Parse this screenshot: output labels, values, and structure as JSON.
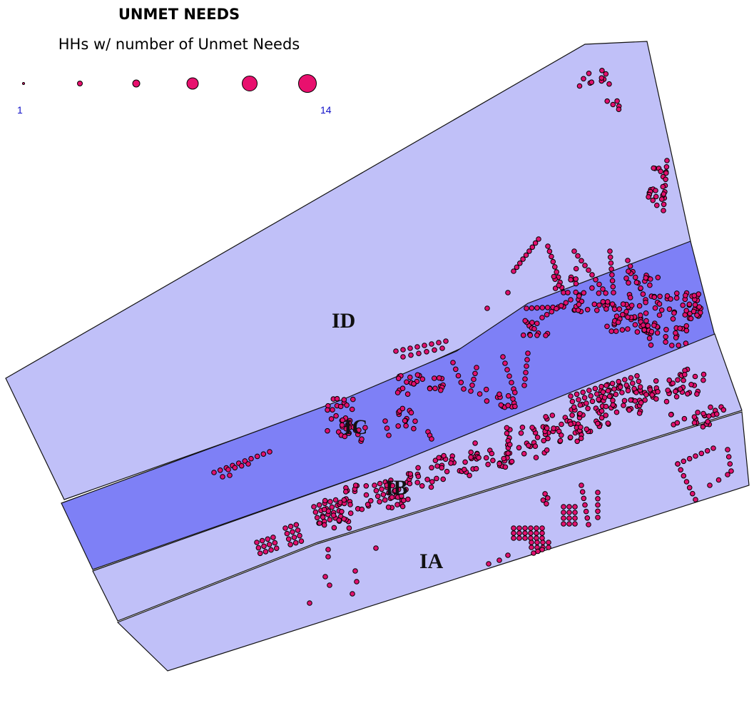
{
  "legend": {
    "title": "UNMET NEEDS",
    "subtitle": "HHs w/ number of Unmet Needs",
    "min_label": "1",
    "max_label": "14",
    "symbol_sizes": 6
  },
  "map": {
    "zones": [
      {
        "id": "ID",
        "label": "ID",
        "fill": "#c0c0f8"
      },
      {
        "id": "IC",
        "label": "IC",
        "fill": "#7e80f6"
      },
      {
        "id": "IB",
        "label": "IB",
        "fill": "#c0c0f8"
      },
      {
        "id": "IA",
        "label": "IA",
        "fill": "#c0c0f8"
      }
    ],
    "outline_color": "#111111",
    "dot_color": "#e0106e"
  }
}
